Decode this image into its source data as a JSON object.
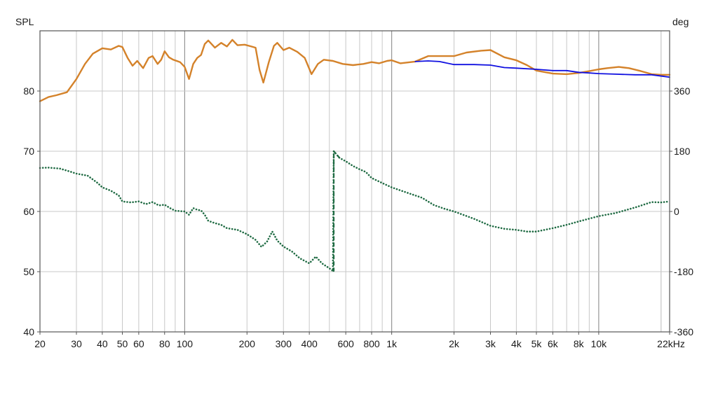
{
  "chart_data": {
    "type": "line",
    "xscale": "log",
    "xlim": [
      20,
      22000
    ],
    "ylim_left": [
      40,
      90
    ],
    "ylim_right": [
      -360,
      540
    ],
    "grid": true,
    "ylabel_left": "SPL",
    "ylabel_right": "deg",
    "x_ticks": [
      {
        "v": 20,
        "label": "20"
      },
      {
        "v": 30,
        "label": "30"
      },
      {
        "v": 40,
        "label": "40"
      },
      {
        "v": 50,
        "label": "50"
      },
      {
        "v": 60,
        "label": "60"
      },
      {
        "v": 80,
        "label": "80"
      },
      {
        "v": 100,
        "label": "100"
      },
      {
        "v": 200,
        "label": "200"
      },
      {
        "v": 300,
        "label": "300"
      },
      {
        "v": 400,
        "label": "400"
      },
      {
        "v": 600,
        "label": "600"
      },
      {
        "v": 800,
        "label": "800"
      },
      {
        "v": 1000,
        "label": "1k"
      },
      {
        "v": 2000,
        "label": "2k"
      },
      {
        "v": 3000,
        "label": "3k"
      },
      {
        "v": 4000,
        "label": "4k"
      },
      {
        "v": 5000,
        "label": "5k"
      },
      {
        "v": 6000,
        "label": "6k"
      },
      {
        "v": 8000,
        "label": "8k"
      },
      {
        "v": 10000,
        "label": "10k"
      },
      {
        "v": 22000,
        "label": "22kHz"
      }
    ],
    "y_ticks_left": [
      {
        "v": 40,
        "label": "40"
      },
      {
        "v": 50,
        "label": "50"
      },
      {
        "v": 60,
        "label": "60"
      },
      {
        "v": 70,
        "label": "70"
      },
      {
        "v": 80,
        "label": "80"
      }
    ],
    "y_ticks_right": [
      {
        "v": -360,
        "label": "-360"
      },
      {
        "v": -180,
        "label": "-180"
      },
      {
        "v": 0,
        "label": "0"
      },
      {
        "v": 180,
        "label": "180"
      },
      {
        "v": 360,
        "label": "360"
      }
    ],
    "colors": {
      "spl": "#d4822a",
      "target": "#1010e0",
      "phase": "#1f6b43",
      "grid": "#c8c8c8",
      "grid_major": "#8c8c8c",
      "frame": "#555555"
    },
    "series": [
      {
        "key": "spl",
        "axis": "left",
        "style": "solid",
        "points": [
          [
            20,
            78.3
          ],
          [
            22,
            79
          ],
          [
            24,
            79.3
          ],
          [
            27,
            79.8
          ],
          [
            30,
            82
          ],
          [
            33,
            84.5
          ],
          [
            36,
            86.2
          ],
          [
            40,
            87.1
          ],
          [
            44,
            86.9
          ],
          [
            48,
            87.5
          ],
          [
            50,
            87.3
          ],
          [
            53,
            85.5
          ],
          [
            56,
            84.2
          ],
          [
            59,
            85
          ],
          [
            63,
            83.8
          ],
          [
            67,
            85.5
          ],
          [
            70,
            85.8
          ],
          [
            74,
            84.5
          ],
          [
            77,
            85.2
          ],
          [
            80,
            86.6
          ],
          [
            84,
            85.6
          ],
          [
            88,
            85.2
          ],
          [
            95,
            84.8
          ],
          [
            100,
            84
          ],
          [
            105,
            82
          ],
          [
            110,
            84.5
          ],
          [
            115,
            85.5
          ],
          [
            120,
            86
          ],
          [
            125,
            87.8
          ],
          [
            130,
            88.4
          ],
          [
            140,
            87.2
          ],
          [
            150,
            88.0
          ],
          [
            160,
            87.4
          ],
          [
            170,
            88.5
          ],
          [
            180,
            87.6
          ],
          [
            195,
            87.7
          ],
          [
            210,
            87.4
          ],
          [
            220,
            87.2
          ],
          [
            230,
            83.5
          ],
          [
            240,
            81.4
          ],
          [
            255,
            84.8
          ],
          [
            270,
            87.5
          ],
          [
            280,
            88
          ],
          [
            300,
            86.8
          ],
          [
            320,
            87.2
          ],
          [
            350,
            86.5
          ],
          [
            380,
            85.5
          ],
          [
            410,
            82.8
          ],
          [
            440,
            84.5
          ],
          [
            470,
            85.2
          ],
          [
            520,
            85
          ],
          [
            580,
            84.5
          ],
          [
            650,
            84.3
          ],
          [
            730,
            84.5
          ],
          [
            800,
            84.8
          ],
          [
            870,
            84.6
          ],
          [
            950,
            85
          ],
          [
            1000,
            85.1
          ],
          [
            1100,
            84.6
          ],
          [
            1300,
            84.9
          ],
          [
            1500,
            85.8
          ],
          [
            1700,
            85.8
          ],
          [
            2000,
            85.8
          ],
          [
            2300,
            86.4
          ],
          [
            2700,
            86.7
          ],
          [
            3000,
            86.8
          ],
          [
            3500,
            85.6
          ],
          [
            4000,
            85.1
          ],
          [
            4500,
            84.3
          ],
          [
            5000,
            83.4
          ],
          [
            6000,
            82.9
          ],
          [
            7000,
            82.8
          ],
          [
            8000,
            83
          ],
          [
            9000,
            83.3
          ],
          [
            10000,
            83.6
          ],
          [
            11000,
            83.8
          ],
          [
            12500,
            84
          ],
          [
            14000,
            83.8
          ],
          [
            16000,
            83.3
          ],
          [
            18000,
            82.8
          ],
          [
            20000,
            82.7
          ],
          [
            22000,
            82.7
          ]
        ]
      },
      {
        "key": "target",
        "axis": "left",
        "style": "solid",
        "points": [
          [
            1300,
            84.9
          ],
          [
            1500,
            85
          ],
          [
            1700,
            84.9
          ],
          [
            2000,
            84.4
          ],
          [
            2500,
            84.4
          ],
          [
            3000,
            84.3
          ],
          [
            3500,
            83.9
          ],
          [
            4000,
            83.8
          ],
          [
            5000,
            83.6
          ],
          [
            6000,
            83.4
          ],
          [
            7000,
            83.4
          ],
          [
            8000,
            83.1
          ],
          [
            9000,
            83
          ],
          [
            10000,
            82.9
          ],
          [
            12000,
            82.8
          ],
          [
            15000,
            82.7
          ],
          [
            18000,
            82.7
          ],
          [
            22000,
            82.3
          ]
        ]
      },
      {
        "key": "phase",
        "axis": "right",
        "style": "dotted",
        "points": [
          [
            20,
            130
          ],
          [
            22,
            131
          ],
          [
            25,
            128
          ],
          [
            28,
            119
          ],
          [
            30,
            113
          ],
          [
            34,
            107
          ],
          [
            38,
            85
          ],
          [
            40,
            72
          ],
          [
            44,
            62
          ],
          [
            48,
            48
          ],
          [
            50,
            30
          ],
          [
            55,
            27
          ],
          [
            60,
            30
          ],
          [
            65,
            22
          ],
          [
            70,
            28
          ],
          [
            75,
            18
          ],
          [
            80,
            20
          ],
          [
            85,
            10
          ],
          [
            90,
            2
          ],
          [
            100,
            0
          ],
          [
            105,
            -10
          ],
          [
            110,
            10
          ],
          [
            115,
            5
          ],
          [
            120,
            3
          ],
          [
            125,
            -10
          ],
          [
            130,
            -28
          ],
          [
            140,
            -35
          ],
          [
            150,
            -40
          ],
          [
            160,
            -50
          ],
          [
            180,
            -55
          ],
          [
            200,
            -68
          ],
          [
            220,
            -85
          ],
          [
            235,
            -106
          ],
          [
            250,
            -90
          ],
          [
            265,
            -60
          ],
          [
            280,
            -87
          ],
          [
            300,
            -105
          ],
          [
            330,
            -120
          ],
          [
            360,
            -140
          ],
          [
            400,
            -155
          ],
          [
            430,
            -135
          ],
          [
            460,
            -155
          ],
          [
            500,
            -170
          ],
          [
            520,
            -178
          ],
          [
            525,
            180
          ],
          [
            560,
            160
          ],
          [
            600,
            150
          ],
          [
            650,
            136
          ],
          [
            700,
            126
          ],
          [
            750,
            118
          ],
          [
            800,
            100
          ],
          [
            900,
            85
          ],
          [
            1000,
            72
          ],
          [
            1200,
            55
          ],
          [
            1400,
            41
          ],
          [
            1600,
            19
          ],
          [
            1800,
            8
          ],
          [
            2000,
            0
          ],
          [
            2500,
            -22
          ],
          [
            3000,
            -43
          ],
          [
            3500,
            -52
          ],
          [
            4000,
            -55
          ],
          [
            4500,
            -60
          ],
          [
            5000,
            -60
          ],
          [
            6000,
            -50
          ],
          [
            7000,
            -40
          ],
          [
            8000,
            -30
          ],
          [
            10000,
            -14
          ],
          [
            12000,
            -5
          ],
          [
            15000,
            12
          ],
          [
            18000,
            28
          ],
          [
            20000,
            27
          ],
          [
            22000,
            30
          ]
        ]
      },
      {
        "key": "phase-wrap",
        "axis": "right",
        "style": "dashed",
        "points": [
          [
            520,
            -178
          ],
          [
            525,
            -178
          ],
          [
            525,
            180
          ],
          [
            560,
            160
          ]
        ]
      }
    ]
  }
}
